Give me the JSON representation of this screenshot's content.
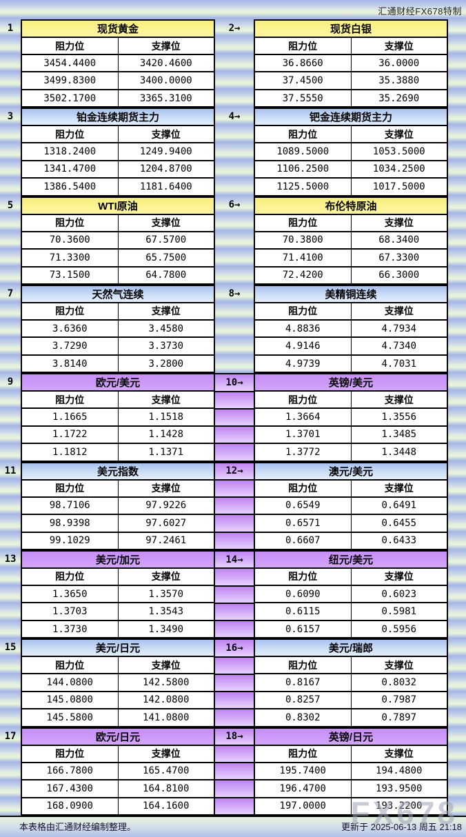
{
  "page": {
    "brand_header": "汇通财经FX678特制",
    "footer_left": "本表格由汇通财经编制整理。",
    "footer_right": "更新于 2025-06-13 周五 21:18",
    "watermark": "FX678"
  },
  "column_labels": {
    "resistance": "阻力位",
    "support": "支撑位"
  },
  "colors": {
    "header_yellow": "#fbf28d",
    "header_blue": "#abc4ee",
    "header_purple": "#cc99fa",
    "stripe_blue": "#a3b5e5",
    "stripe_green": "#e9f4dc",
    "spacer_purple": "#c68ff7"
  },
  "blocks": [
    {
      "spacer_theme": "cool",
      "left": {
        "index": "1",
        "title": "现货黄金",
        "theme": "yellow",
        "rows": [
          [
            "3454.4400",
            "3420.4600"
          ],
          [
            "3499.8300",
            "3400.0000"
          ],
          [
            "3502.1700",
            "3365.3100"
          ]
        ]
      },
      "right": {
        "index": "2→",
        "title": "现货白银",
        "theme": "yellow",
        "rows": [
          [
            "36.8660",
            "36.0000"
          ],
          [
            "37.4500",
            "35.3880"
          ],
          [
            "37.5550",
            "35.2690"
          ]
        ]
      }
    },
    {
      "spacer_theme": "cool",
      "left": {
        "index": "3",
        "title": "铂金连续期货主力",
        "theme": "blue",
        "rows": [
          [
            "1318.2400",
            "1249.9400"
          ],
          [
            "1341.4700",
            "1204.8700"
          ],
          [
            "1386.5400",
            "1181.6400"
          ]
        ]
      },
      "right": {
        "index": "4→",
        "title": "钯金连续期货主力",
        "theme": "blue",
        "rows": [
          [
            "1089.5000",
            "1053.5000"
          ],
          [
            "1106.2500",
            "1034.2500"
          ],
          [
            "1125.5000",
            "1017.5000"
          ]
        ]
      }
    },
    {
      "spacer_theme": "cool",
      "left": {
        "index": "5",
        "title": "WTI原油",
        "theme": "yellow",
        "rows": [
          [
            "70.3600",
            "67.5700"
          ],
          [
            "71.3300",
            "65.7500"
          ],
          [
            "73.1500",
            "64.7800"
          ]
        ]
      },
      "right": {
        "index": "6→",
        "title": "布伦特原油",
        "theme": "yellow",
        "rows": [
          [
            "70.3800",
            "68.3400"
          ],
          [
            "71.4100",
            "67.3300"
          ],
          [
            "72.4200",
            "66.3000"
          ]
        ]
      }
    },
    {
      "spacer_theme": "cool",
      "left": {
        "index": "7",
        "title": "天然气连续",
        "theme": "blue",
        "rows": [
          [
            "3.6360",
            "3.4580"
          ],
          [
            "3.7290",
            "3.3730"
          ],
          [
            "3.8140",
            "3.2800"
          ]
        ]
      },
      "right": {
        "index": "8→",
        "title": "美精铜连续",
        "theme": "blue",
        "rows": [
          [
            "4.8836",
            "4.7934"
          ],
          [
            "4.9146",
            "4.7340"
          ],
          [
            "4.9739",
            "4.7031"
          ]
        ]
      }
    },
    {
      "spacer_theme": "purple",
      "left": {
        "index": "9",
        "title": "欧元/美元",
        "theme": "purple",
        "rows": [
          [
            "1.1665",
            "1.1518"
          ],
          [
            "1.1722",
            "1.1428"
          ],
          [
            "1.1812",
            "1.1371"
          ]
        ]
      },
      "right": {
        "index": "10→",
        "title": "英镑/美元",
        "theme": "purple",
        "rows": [
          [
            "1.3664",
            "1.3556"
          ],
          [
            "1.3701",
            "1.3485"
          ],
          [
            "1.3772",
            "1.3448"
          ]
        ]
      }
    },
    {
      "spacer_theme": "purple",
      "left": {
        "index": "11",
        "title": "美元指数",
        "theme": "blue",
        "rows": [
          [
            "98.7106",
            "97.9226"
          ],
          [
            "98.9398",
            "97.6027"
          ],
          [
            "99.1029",
            "97.2461"
          ]
        ]
      },
      "right": {
        "index": "12→",
        "title": "澳元/美元",
        "theme": "blue",
        "rows": [
          [
            "0.6549",
            "0.6491"
          ],
          [
            "0.6571",
            "0.6455"
          ],
          [
            "0.6607",
            "0.6433"
          ]
        ]
      }
    },
    {
      "spacer_theme": "purple",
      "left": {
        "index": "13",
        "title": "美元/加元",
        "theme": "purple",
        "rows": [
          [
            "1.3650",
            "1.3570"
          ],
          [
            "1.3703",
            "1.3543"
          ],
          [
            "1.3730",
            "1.3490"
          ]
        ]
      },
      "right": {
        "index": "14→",
        "title": "纽元/美元",
        "theme": "purple",
        "rows": [
          [
            "0.6090",
            "0.6023"
          ],
          [
            "0.6115",
            "0.5981"
          ],
          [
            "0.6157",
            "0.5956"
          ]
        ]
      }
    },
    {
      "spacer_theme": "purple",
      "left": {
        "index": "15",
        "title": "美元/日元",
        "theme": "blue",
        "rows": [
          [
            "144.0800",
            "142.5800"
          ],
          [
            "145.0800",
            "142.0800"
          ],
          [
            "145.5800",
            "141.0800"
          ]
        ]
      },
      "right": {
        "index": "16→",
        "title": "美元/瑞郎",
        "theme": "blue",
        "rows": [
          [
            "0.8167",
            "0.8032"
          ],
          [
            "0.8257",
            "0.7987"
          ],
          [
            "0.8302",
            "0.7897"
          ]
        ]
      }
    },
    {
      "spacer_theme": "purple",
      "left": {
        "index": "17",
        "title": "欧元/日元",
        "theme": "purple",
        "rows": [
          [
            "166.7800",
            "165.4700"
          ],
          [
            "167.4300",
            "164.8100"
          ],
          [
            "168.0900",
            "164.1600"
          ]
        ]
      },
      "right": {
        "index": "18→",
        "title": "英镑/日元",
        "theme": "purple",
        "rows": [
          [
            "195.7400",
            "194.4800"
          ],
          [
            "196.4700",
            "193.9500"
          ],
          [
            "197.0000",
            "193.2200"
          ]
        ]
      }
    }
  ]
}
